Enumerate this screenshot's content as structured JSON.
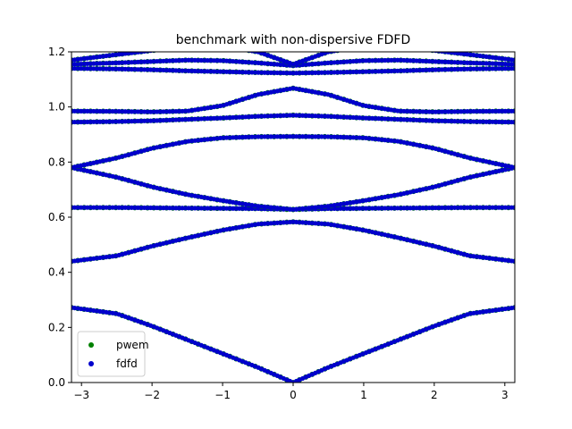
{
  "chart_data": {
    "type": "scatter",
    "title": "benchmark with non-dispersive FDFD",
    "xlabel": "",
    "ylabel": "",
    "xlim": [
      -3.14159,
      3.14159
    ],
    "ylim": [
      0,
      1.2
    ],
    "x_ticks": [
      -3,
      -2,
      -1,
      0,
      1,
      2,
      3
    ],
    "x_tick_labels": [
      "−3",
      "−2",
      "−1",
      "0",
      "1",
      "2",
      "3"
    ],
    "y_ticks": [
      0.0,
      0.2,
      0.4,
      0.6,
      0.8,
      1.0,
      1.2
    ],
    "y_tick_labels": [
      "0.0",
      "0.2",
      "0.4",
      "0.6",
      "0.8",
      "1.0",
      "1.2"
    ],
    "grid": false,
    "legend_position": "lower-left",
    "series": [
      {
        "name": "pwem",
        "color": "#008000",
        "marker": "dot"
      },
      {
        "name": "fdfd",
        "color": "#0000cc",
        "marker": "dot"
      }
    ],
    "bands": [
      {
        "x": [
          -3.14,
          -2.5,
          -2.0,
          -1.5,
          -1.0,
          -0.5,
          0.0,
          0.5,
          1.0,
          1.5,
          2.0,
          2.5,
          3.14
        ],
        "y": [
          0.272,
          0.25,
          0.205,
          0.155,
          0.105,
          0.055,
          0.0,
          0.055,
          0.105,
          0.155,
          0.205,
          0.25,
          0.272
        ]
      },
      {
        "x": [
          -3.14,
          -2.5,
          -2.0,
          -1.5,
          -1.0,
          -0.5,
          0.0,
          0.5,
          1.0,
          1.5,
          2.0,
          2.5,
          3.14
        ],
        "y": [
          0.44,
          0.46,
          0.495,
          0.525,
          0.553,
          0.575,
          0.583,
          0.575,
          0.553,
          0.525,
          0.495,
          0.46,
          0.44
        ]
      },
      {
        "x": [
          -3.14,
          -2.5,
          -2.0,
          -1.5,
          -1.0,
          -0.5,
          0.0,
          0.5,
          1.0,
          1.5,
          2.0,
          2.5,
          3.14
        ],
        "y": [
          0.635,
          0.635,
          0.634,
          0.633,
          0.632,
          0.631,
          0.628,
          0.631,
          0.632,
          0.633,
          0.634,
          0.635,
          0.635
        ]
      },
      {
        "x": [
          -3.14,
          -2.5,
          -2.0,
          -1.5,
          -1.0,
          -0.5,
          0.0,
          0.5,
          1.0,
          1.5,
          2.0,
          2.5,
          3.14
        ],
        "y": [
          0.78,
          0.745,
          0.71,
          0.682,
          0.66,
          0.64,
          0.628,
          0.64,
          0.66,
          0.682,
          0.71,
          0.745,
          0.78
        ]
      },
      {
        "x": [
          -3.14,
          -2.5,
          -2.0,
          -1.5,
          -1.0,
          -0.5,
          0.0,
          0.5,
          1.0,
          1.5,
          2.0,
          2.5,
          3.14
        ],
        "y": [
          0.78,
          0.815,
          0.85,
          0.875,
          0.888,
          0.892,
          0.893,
          0.892,
          0.888,
          0.875,
          0.85,
          0.815,
          0.78
        ]
      },
      {
        "x": [
          -3.14,
          -2.5,
          -2.0,
          -1.5,
          -1.0,
          -0.5,
          0.0,
          0.5,
          1.0,
          1.5,
          2.0,
          2.5,
          3.14
        ],
        "y": [
          0.945,
          0.947,
          0.95,
          0.955,
          0.96,
          0.966,
          0.97,
          0.966,
          0.96,
          0.955,
          0.95,
          0.947,
          0.945
        ]
      },
      {
        "x": [
          -3.14,
          -2.5,
          -2.0,
          -1.5,
          -1.0,
          -0.5,
          0.0,
          0.5,
          1.0,
          1.5,
          2.0,
          2.5,
          3.14
        ],
        "y": [
          0.985,
          0.984,
          0.982,
          0.985,
          1.005,
          1.045,
          1.068,
          1.045,
          1.005,
          0.985,
          0.982,
          0.984,
          0.985
        ]
      },
      {
        "x": [
          -3.14,
          -2.5,
          -2.0,
          -1.5,
          -1.0,
          -0.5,
          0.0,
          0.5,
          1.0,
          1.5,
          2.0,
          2.5,
          3.14
        ],
        "y": [
          1.14,
          1.138,
          1.135,
          1.131,
          1.128,
          1.125,
          1.123,
          1.125,
          1.128,
          1.131,
          1.135,
          1.138,
          1.14
        ]
      },
      {
        "x": [
          -3.14,
          -2.5,
          -2.0,
          -1.5,
          -1.0,
          -0.5,
          0.0,
          0.5,
          1.0,
          1.5,
          2.0,
          2.5,
          3.14
        ],
        "y": [
          1.155,
          1.16,
          1.165,
          1.17,
          1.168,
          1.16,
          1.15,
          1.16,
          1.168,
          1.17,
          1.165,
          1.16,
          1.155
        ]
      },
      {
        "x": [
          -3.14,
          -2.5,
          -2.0,
          -1.5,
          -1.0,
          -0.5,
          0.0,
          0.5,
          1.0,
          1.5,
          2.0,
          2.5,
          3.14
        ],
        "y": [
          1.17,
          1.19,
          1.205,
          1.22,
          1.22,
          1.2,
          1.155,
          1.2,
          1.22,
          1.22,
          1.205,
          1.19,
          1.17
        ]
      }
    ]
  }
}
